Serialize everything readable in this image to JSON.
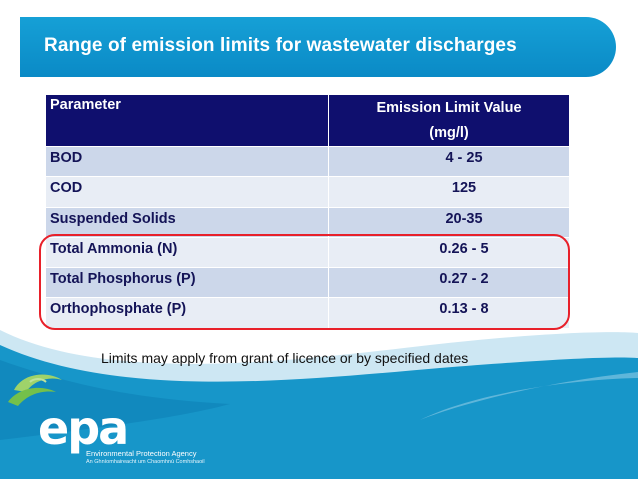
{
  "slide": {
    "title": "Range of emission limits for wastewater discharges",
    "note": "Limits may apply from grant of licence or by specified dates"
  },
  "table": {
    "headers": {
      "parameter": "Parameter",
      "limit_line1": "Emission Limit Value",
      "limit_line2": "(mg/l)"
    },
    "rows": [
      {
        "parameter": "BOD",
        "limit": "4 - 25"
      },
      {
        "parameter": "COD",
        "limit": "125"
      },
      {
        "parameter": "Suspended Solids",
        "limit": "20-35"
      },
      {
        "parameter": "Total Ammonia (N)",
        "limit": "0.26 - 5"
      },
      {
        "parameter": "Total Phosphorus (P)",
        "limit": "0.27 - 2"
      },
      {
        "parameter": "Orthophosphate (P)",
        "limit": "0.13 - 8"
      }
    ]
  },
  "logo": {
    "text": "epa",
    "line1": "Environmental Protection Agency",
    "line2": "An Ghníomhaireacht um Chaomhnú Comhshaoil"
  },
  "colors": {
    "banner": "#0a8ac6",
    "header_bg": "#0f0f6e",
    "row_dark": "#ccd7ea",
    "row_light": "#e8edf5",
    "highlight": "#e8202a",
    "wave": "#1796c9"
  }
}
